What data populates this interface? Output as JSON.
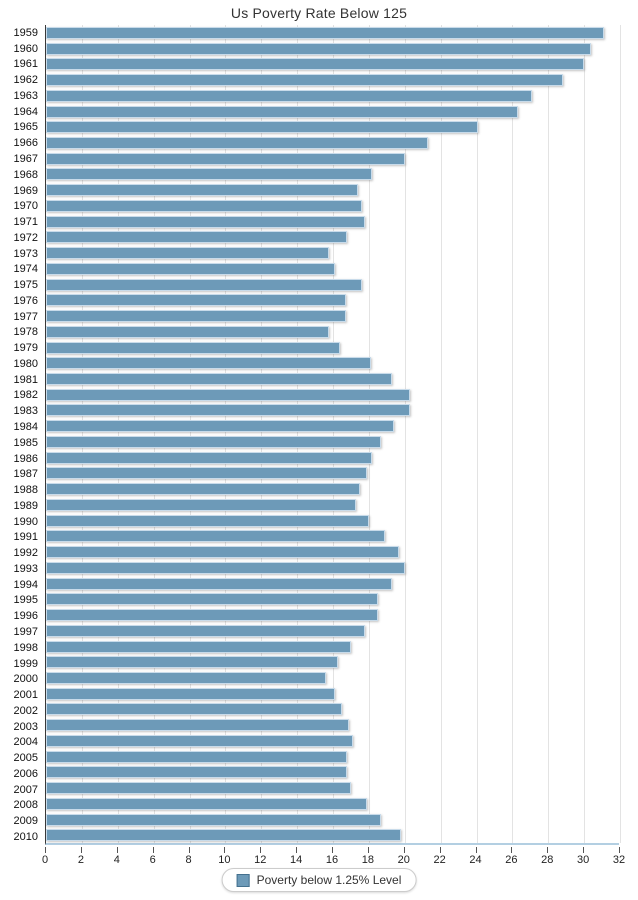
{
  "title": "Us Poverty Rate Below 125",
  "legend": {
    "label": "Poverty below 1.25% Level"
  },
  "colors": {
    "bar_fill": "#6d9ab8",
    "bar_border": "#c8dbea",
    "legend_swatch_border": "#44708e",
    "gridline": "#e3e3e3",
    "y_axis_line": "#3a3a3a",
    "x_baseline": "#b3cfe2",
    "tick_mark": "#555555",
    "label_text": "#111111",
    "title_text": "#333333"
  },
  "chart_data": {
    "type": "bar",
    "orientation": "horizontal",
    "title": "Us Poverty Rate Below 125",
    "xlabel": "",
    "ylabel": "",
    "xlim": [
      0,
      32
    ],
    "xticks": [
      0,
      2,
      4,
      6,
      8,
      10,
      12,
      14,
      16,
      18,
      20,
      22,
      24,
      26,
      28,
      30,
      32
    ],
    "grid": true,
    "legend_entries": [
      "Poverty below 1.25% Level"
    ],
    "legend_position": "bottom",
    "categories": [
      "1959",
      "1960",
      "1961",
      "1962",
      "1963",
      "1964",
      "1965",
      "1966",
      "1967",
      "1968",
      "1969",
      "1970",
      "1971",
      "1972",
      "1973",
      "1974",
      "1975",
      "1976",
      "1977",
      "1978",
      "1979",
      "1980",
      "1981",
      "1982",
      "1983",
      "1984",
      "1985",
      "1986",
      "1987",
      "1988",
      "1989",
      "1990",
      "1991",
      "1992",
      "1993",
      "1994",
      "1995",
      "1996",
      "1997",
      "1998",
      "1999",
      "2000",
      "2001",
      "2002",
      "2003",
      "2004",
      "2005",
      "2006",
      "2007",
      "2008",
      "2009",
      "2010"
    ],
    "values": [
      31.1,
      30.4,
      30.0,
      28.8,
      27.1,
      26.3,
      24.1,
      21.3,
      20.0,
      18.2,
      17.4,
      17.6,
      17.8,
      16.8,
      15.8,
      16.1,
      17.6,
      16.7,
      16.7,
      15.8,
      16.4,
      18.1,
      19.3,
      20.3,
      20.3,
      19.4,
      18.7,
      18.2,
      17.9,
      17.5,
      17.3,
      18.0,
      18.9,
      19.7,
      20.0,
      19.3,
      18.5,
      18.5,
      17.8,
      17.0,
      16.3,
      15.6,
      16.1,
      16.5,
      16.9,
      17.1,
      16.8,
      16.8,
      17.0,
      17.9,
      18.7,
      19.8
    ]
  }
}
